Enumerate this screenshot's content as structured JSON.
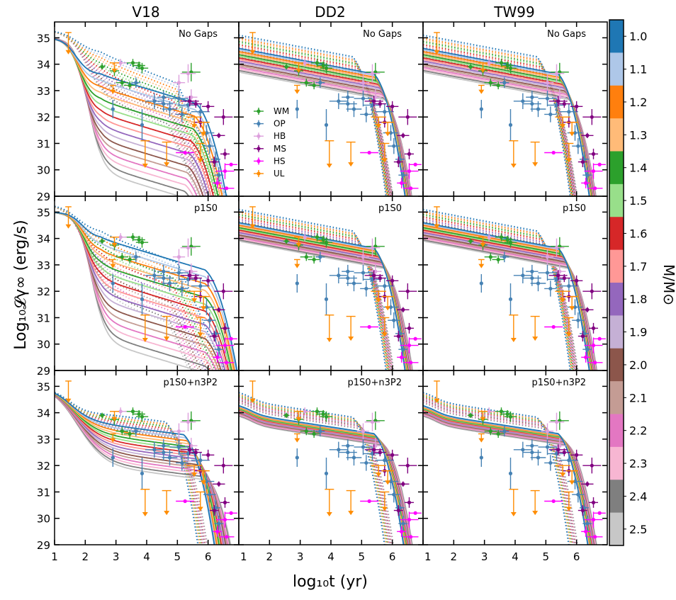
{
  "chart_data": {
    "type": "line",
    "column_titles": [
      "V18",
      "DD2",
      "TW99"
    ],
    "row_titles": [
      "No Gaps",
      "p1S0",
      "p1S0+n3P2"
    ],
    "xlabel": "log₁₀t (yr)",
    "ylabel": "Log₁₀𝓛γ∞ (erg/s)",
    "xlim": [
      1,
      7
    ],
    "ylim": [
      29,
      35.6
    ],
    "x_ticks": [
      1,
      2,
      3,
      4,
      5,
      6
    ],
    "y_ticks": [
      29,
      30,
      31,
      32,
      33,
      34,
      35
    ],
    "colorbar": {
      "label": "M/M⊙",
      "labels": [
        "1.0",
        "1.1",
        "1.2",
        "1.3",
        "1.4",
        "1.5",
        "1.6",
        "1.7",
        "1.8",
        "1.9",
        "2.0",
        "2.1",
        "2.2",
        "2.3",
        "2.4",
        "2.5"
      ],
      "colors": [
        "#1f77b4",
        "#aec7e8",
        "#ff7f0e",
        "#ffbb78",
        "#2ca02c",
        "#98df8a",
        "#d62728",
        "#ff9896",
        "#9467bd",
        "#c5b0d5",
        "#8c564b",
        "#c49c94",
        "#e377c2",
        "#f7b6d2",
        "#7f7f7f",
        "#c7c7c7"
      ]
    },
    "legend": [
      {
        "name": "WM",
        "color": "#2ca02c"
      },
      {
        "name": "OP",
        "color": "#4682b4"
      },
      {
        "name": "HB",
        "color": "#dda0dd"
      },
      {
        "name": "MS",
        "color": "#800080"
      },
      {
        "name": "HS",
        "color": "#ff00ff"
      },
      {
        "name": "UL",
        "color": "#ff8c00"
      }
    ],
    "observations": [
      {
        "g": "WM",
        "x": 3.55,
        "y": 34.05,
        "xe": 0.25,
        "ye": 0.15
      },
      {
        "g": "WM",
        "x": 3.75,
        "y": 33.95,
        "xe": 0.2,
        "ye": 0.15
      },
      {
        "g": "WM",
        "x": 2.95,
        "y": 33.75,
        "xe": 0.15,
        "ye": 0.2
      },
      {
        "g": "WM",
        "x": 3.2,
        "y": 33.3,
        "xe": 0.2,
        "ye": 0.15
      },
      {
        "g": "WM",
        "x": 3.45,
        "y": 33.2,
        "xe": 0.2,
        "ye": 0.15
      },
      {
        "g": "WM",
        "x": 3.85,
        "y": 33.85,
        "xe": 0.2,
        "ye": 0.2
      },
      {
        "g": "WM",
        "x": 2.55,
        "y": 33.9,
        "xe": 0.1,
        "ye": 0.1
      },
      {
        "g": "WM",
        "x": 5.45,
        "y": 33.7,
        "xe": 0.3,
        "ye": 0.35
      },
      {
        "g": "OP",
        "x": 2.9,
        "y": 32.3,
        "xe": 0,
        "ye": 0.35
      },
      {
        "g": "OP",
        "x": 3.85,
        "y": 31.7,
        "xe": 0,
        "ye": 0.6
      },
      {
        "g": "OP",
        "x": 4.25,
        "y": 32.6,
        "xe": 0.3,
        "ye": 0.3
      },
      {
        "g": "OP",
        "x": 4.55,
        "y": 32.5,
        "xe": 0.3,
        "ye": 0.3
      },
      {
        "g": "OP",
        "x": 4.75,
        "y": 32.3,
        "xe": 0.25,
        "ye": 0.3
      },
      {
        "g": "OP",
        "x": 5.05,
        "y": 32.7,
        "xe": 0.3,
        "ye": 0.3
      },
      {
        "g": "OP",
        "x": 5.35,
        "y": 32.45,
        "xe": 0.3,
        "ye": 0.25
      },
      {
        "g": "OP",
        "x": 5.75,
        "y": 32.2,
        "xe": 0.3,
        "ye": 0.3
      },
      {
        "g": "OP",
        "x": 5.95,
        "y": 31.4,
        "xe": 0.25,
        "ye": 0.3
      },
      {
        "g": "OP",
        "x": 6.05,
        "y": 30.9,
        "xe": 0.2,
        "ye": 0.3
      },
      {
        "g": "OP",
        "x": 4.55,
        "y": 32.75,
        "xe": 0.2,
        "ye": 0.25
      },
      {
        "g": "OP",
        "x": 5.15,
        "y": 32.1,
        "xe": 0.2,
        "ye": 0.3
      },
      {
        "g": "OP",
        "x": 6.25,
        "y": 30.4,
        "xe": 0.15,
        "ye": 0.3
      },
      {
        "g": "OP",
        "x": 6.35,
        "y": 29.8,
        "xe": 0.15,
        "ye": 0.3
      },
      {
        "g": "OP",
        "x": 3.65,
        "y": 33.3,
        "xe": 0.15,
        "ye": 0.2
      },
      {
        "g": "HB",
        "x": 3.15,
        "y": 34.05,
        "xe": 0.2,
        "ye": 0.15
      },
      {
        "g": "HB",
        "x": 5.05,
        "y": 33.3,
        "xe": 0.2,
        "ye": 0.3
      },
      {
        "g": "HB",
        "x": 5.35,
        "y": 33.65,
        "xe": 0.25,
        "ye": 0.35
      },
      {
        "g": "HB",
        "x": 5.45,
        "y": 32.75,
        "xe": 0.2,
        "ye": 0.3
      },
      {
        "g": "MS",
        "x": 5.4,
        "y": 32.6,
        "xe": 0.3,
        "ye": 0.2
      },
      {
        "g": "MS",
        "x": 5.6,
        "y": 32.5,
        "xe": 0.2,
        "ye": 0.15
      },
      {
        "g": "MS",
        "x": 5.75,
        "y": 31.8,
        "xe": 0.2,
        "ye": 0.2
      },
      {
        "g": "MS",
        "x": 6.0,
        "y": 32.4,
        "xe": 0.2,
        "ye": 0.2
      },
      {
        "g": "MS",
        "x": 6.5,
        "y": 32.0,
        "xe": 0.3,
        "ye": 0.3
      },
      {
        "g": "MS",
        "x": 6.35,
        "y": 31.3,
        "xe": 0.2,
        "ye": 0.1
      },
      {
        "g": "MS",
        "x": 6.55,
        "y": 30.6,
        "xe": 0.15,
        "ye": 0.2
      },
      {
        "g": "MS",
        "x": 6.2,
        "y": 30.3,
        "xe": 0.15,
        "ye": 0.2
      },
      {
        "g": "HS",
        "x": 5.25,
        "y": 30.65,
        "xe": 0.3,
        "ye": 0
      },
      {
        "g": "HS",
        "x": 6.55,
        "y": 29.95,
        "xe": 0.3,
        "ye": 0.3
      },
      {
        "g": "HS",
        "x": 6.75,
        "y": 30.2,
        "xe": 0.2,
        "ye": 0
      },
      {
        "g": "HS",
        "x": 6.6,
        "y": 29.3,
        "xe": 0.25,
        "ye": 0
      },
      {
        "g": "HS",
        "x": 6.3,
        "y": 29.5,
        "xe": 0.15,
        "ye": 0.2
      }
    ],
    "upper_limits": [
      {
        "x": 1.45,
        "y": 35.2,
        "xe": 0.1,
        "dy": 0.8
      },
      {
        "x": 2.95,
        "y": 34.05,
        "xe": 0.15,
        "dy": 0.35
      },
      {
        "x": 2.9,
        "y": 33.2,
        "xe": 0.1,
        "dy": 0.3
      },
      {
        "x": 3.95,
        "y": 31.1,
        "xe": 0.15,
        "dy": 1.0
      },
      {
        "x": 4.65,
        "y": 31.05,
        "xe": 0.15,
        "dy": 0.9
      },
      {
        "x": 5.55,
        "y": 32.0,
        "xe": 0.25,
        "dy": 0.4
      },
      {
        "x": 5.85,
        "y": 31.8,
        "xe": 0.2,
        "dy": 0.5
      },
      {
        "x": 5.75,
        "y": 31.0,
        "xe": 0.15,
        "dy": 0.7
      }
    ]
  }
}
